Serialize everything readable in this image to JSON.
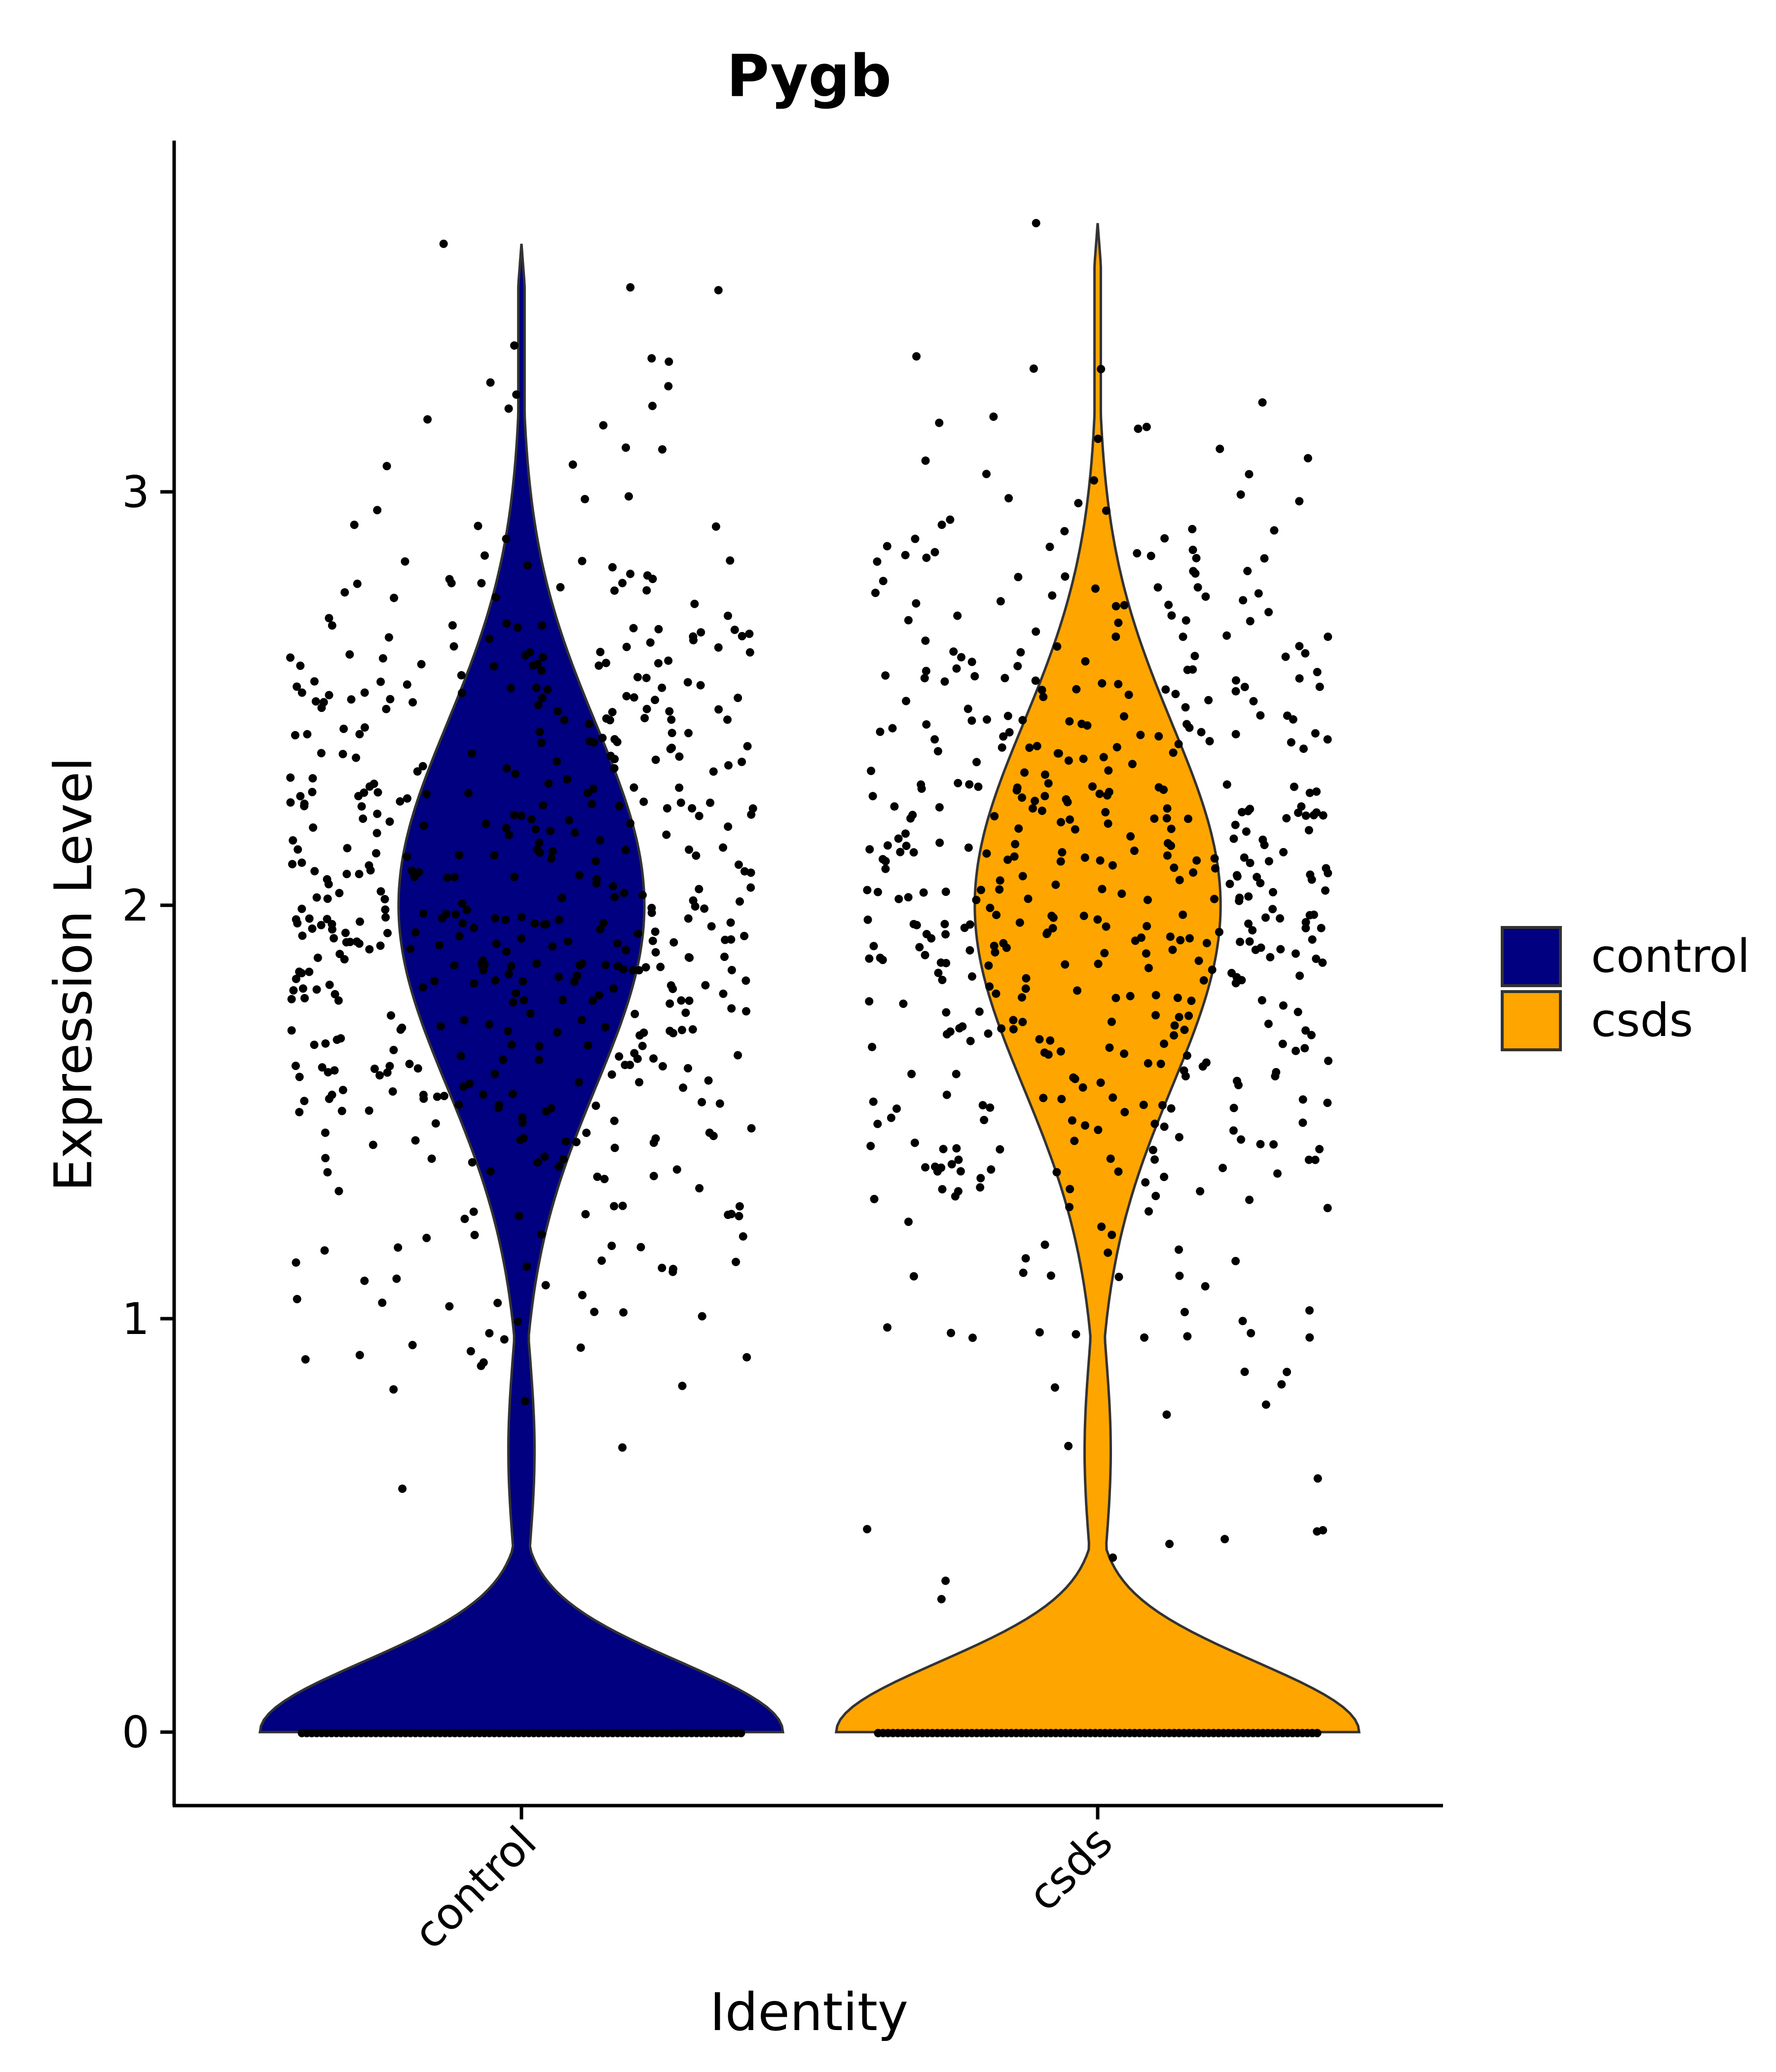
{
  "chart_data": {
    "type": "violin",
    "title": "Pygb",
    "xlabel": "Identity",
    "ylabel": "Expression Level",
    "categories": [
      "control",
      "csds"
    ],
    "ylim": [
      -0.18,
      3.85
    ],
    "yticks": [
      0,
      1,
      2,
      3
    ],
    "grid": false,
    "legend": {
      "placement": "right",
      "entries": [
        "control",
        "csds"
      ]
    },
    "series": [
      {
        "name": "control",
        "color": "#000080",
        "max": 3.6,
        "mode_low": 0.0,
        "mode_high": 2.0,
        "dip": 0.68,
        "points_nonzero": 560
      },
      {
        "name": "csds",
        "color": "#FFA500",
        "max": 3.65,
        "mode_low": 0.0,
        "mode_high": 2.0,
        "dip": 0.68,
        "points_nonzero": 540
      }
    ]
  }
}
